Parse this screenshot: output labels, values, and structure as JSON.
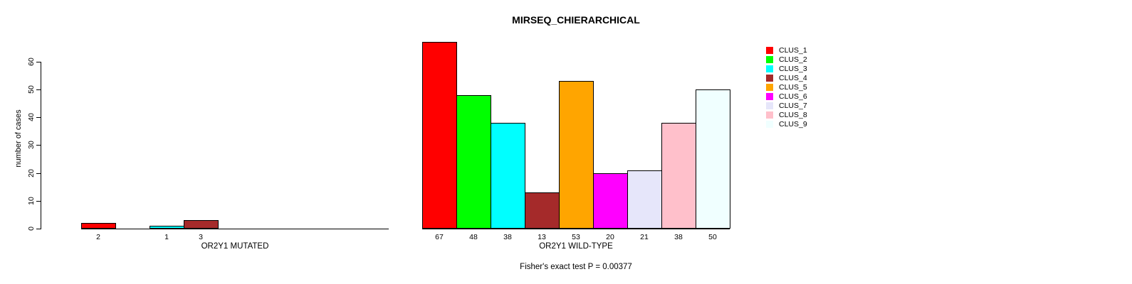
{
  "chart_data": {
    "type": "bar",
    "title": "MIRSEQ_CHIERARCHICAL",
    "ylabel": "number of cases",
    "ylim": [
      0,
      67
    ],
    "yticks": [
      0,
      10,
      20,
      30,
      40,
      50,
      60
    ],
    "grid": false,
    "categories": [
      "CLUS_1",
      "CLUS_2",
      "CLUS_3",
      "CLUS_4",
      "CLUS_5",
      "CLUS_6",
      "CLUS_7",
      "CLUS_8",
      "CLUS_9"
    ],
    "series": [
      {
        "name": "OR2Y1 MUTATED",
        "values": [
          2,
          0,
          1,
          3,
          0,
          0,
          0,
          0,
          0
        ]
      },
      {
        "name": "OR2Y1 WILD-TYPE",
        "values": [
          67,
          48,
          38,
          13,
          53,
          20,
          21,
          38,
          50
        ]
      }
    ],
    "colors": [
      "#FF0000",
      "#00FF00",
      "#00FFFF",
      "#A52A2A",
      "#FFA500",
      "#FF00FF",
      "#E6E6FA",
      "#FFC0CB",
      "#F0FFFF"
    ],
    "bar_value_labels": true,
    "legend": [
      "CLUS_1",
      "CLUS_2",
      "CLUS_3",
      "CLUS_4",
      "CLUS_5",
      "CLUS_6",
      "CLUS_7",
      "CLUS_8",
      "CLUS_9"
    ],
    "legend_position": "right",
    "annotation": "Fisher's exact test P = 0.00377"
  }
}
